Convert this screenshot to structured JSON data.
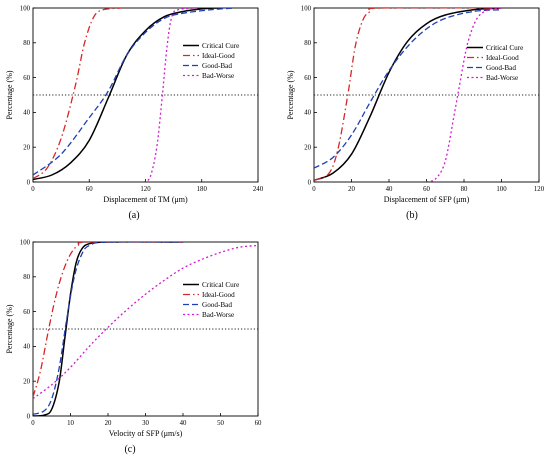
{
  "panels": [
    {
      "type": "line",
      "panel_label": "(a)",
      "xlabel": "Displacement of TM (μm)",
      "ylabel": "Percentage (%)",
      "xlim": [
        0,
        240
      ],
      "ylim": [
        0,
        100
      ],
      "xticks": [
        "0",
        "60",
        "120",
        "180",
        "240"
      ],
      "xtick_values": [
        0,
        60,
        120,
        180,
        240
      ],
      "yticks": [
        "0",
        "20",
        "40",
        "60",
        "80",
        "100"
      ],
      "ytick_values": [
        0,
        20,
        40,
        60,
        80,
        100
      ],
      "reference_line": {
        "y": 50
      },
      "legend_position": "upper-right",
      "series": [
        {
          "name": "Critical Cure",
          "color": "#000000",
          "dash": "solid",
          "points": [
            [
              0,
              1.5
            ],
            [
              20,
              4
            ],
            [
              40,
              11
            ],
            [
              60,
              24
            ],
            [
              80,
              48
            ],
            [
              100,
              73
            ],
            [
              120,
              87
            ],
            [
              140,
              95
            ],
            [
              160,
              98
            ],
            [
              180,
              99.5
            ],
            [
              200,
              100
            ]
          ]
        },
        {
          "name": "Ideal-Good",
          "color": "#d62728",
          "dash": "dashdot",
          "points": [
            [
              0,
              2
            ],
            [
              15,
              8
            ],
            [
              30,
              25
            ],
            [
              45,
              55
            ],
            [
              55,
              80
            ],
            [
              65,
              95
            ],
            [
              75,
              99
            ],
            [
              95,
              100
            ]
          ]
        },
        {
          "name": "Good-Bad",
          "color": "#1f3fb4",
          "dash": "dash",
          "points": [
            [
              0,
              4
            ],
            [
              30,
              16
            ],
            [
              60,
              37
            ],
            [
              80,
              52
            ],
            [
              100,
              73
            ],
            [
              120,
              86
            ],
            [
              140,
              94
            ],
            [
              160,
              97
            ],
            [
              190,
              99
            ],
            [
              215,
              100
            ]
          ]
        },
        {
          "name": "Bad-Worse",
          "color": "#d21bd2",
          "dash": "dot",
          "points": [
            [
              118,
              0
            ],
            [
              125,
              3
            ],
            [
              132,
              20
            ],
            [
              138,
              50
            ],
            [
              143,
              78
            ],
            [
              148,
              95
            ],
            [
              155,
              99
            ],
            [
              175,
              100
            ]
          ]
        }
      ]
    },
    {
      "type": "line",
      "panel_label": "(b)",
      "xlabel": "Displacement of SFP (μm)",
      "ylabel": "Percentage (%)",
      "xlim": [
        0,
        120
      ],
      "ylim": [
        0,
        100
      ],
      "xticks": [
        "0",
        "20",
        "40",
        "60",
        "80",
        "100",
        "120"
      ],
      "xtick_values": [
        0,
        20,
        40,
        60,
        80,
        100,
        120
      ],
      "yticks": [
        "0",
        "20",
        "40",
        "60",
        "80",
        "100"
      ],
      "ytick_values": [
        0,
        20,
        40,
        60,
        80,
        100
      ],
      "reference_line": {
        "y": 50
      },
      "legend_position": "upper-right",
      "series": [
        {
          "name": "Critical Cure",
          "color": "#000000",
          "dash": "solid",
          "points": [
            [
              0,
              1
            ],
            [
              10,
              5
            ],
            [
              20,
              16
            ],
            [
              30,
              38
            ],
            [
              40,
              63
            ],
            [
              50,
              81
            ],
            [
              60,
              91
            ],
            [
              70,
              96
            ],
            [
              85,
              99
            ],
            [
              100,
              100
            ]
          ]
        },
        {
          "name": "Ideal-Good",
          "color": "#d62728",
          "dash": "dashdot",
          "points": [
            [
              0,
              1
            ],
            [
              8,
              5
            ],
            [
              13,
              20
            ],
            [
              18,
              50
            ],
            [
              22,
              78
            ],
            [
              26,
              93
            ],
            [
              30,
              98
            ],
            [
              36,
              100
            ],
            [
              100,
              100
            ]
          ]
        },
        {
          "name": "Good-Bad",
          "color": "#1f3fb4",
          "dash": "dash",
          "points": [
            [
              0,
              8
            ],
            [
              10,
              14
            ],
            [
              20,
              27
            ],
            [
              30,
              46
            ],
            [
              40,
              64
            ],
            [
              50,
              78
            ],
            [
              60,
              88
            ],
            [
              70,
              94
            ],
            [
              85,
              98
            ],
            [
              100,
              99
            ]
          ]
        },
        {
          "name": "Bad-Worse",
          "color": "#d21bd2",
          "dash": "dot",
          "points": [
            [
              60,
              0
            ],
            [
              65,
              2
            ],
            [
              70,
              12
            ],
            [
              75,
              40
            ],
            [
              78,
              58
            ],
            [
              82,
              80
            ],
            [
              87,
              94
            ],
            [
              93,
              99
            ],
            [
              100,
              100
            ]
          ]
        }
      ]
    },
    {
      "type": "line",
      "panel_label": "(c)",
      "xlabel": "Velocity of SFP (μm/s)",
      "ylabel": "Percentage (%)",
      "xlim": [
        0,
        60
      ],
      "ylim": [
        0,
        100
      ],
      "xticks": [
        "0",
        "10",
        "20",
        "30",
        "40",
        "50",
        "60"
      ],
      "xtick_values": [
        0,
        10,
        20,
        30,
        40,
        50,
        60
      ],
      "yticks": [
        "0",
        "20",
        "40",
        "60",
        "80",
        "100"
      ],
      "ytick_values": [
        0,
        20,
        40,
        60,
        80,
        100
      ],
      "reference_line": {
        "y": 50
      },
      "legend_position": "upper-right",
      "series": [
        {
          "name": "Critical Cure",
          "color": "#000000",
          "dash": "solid",
          "points": [
            [
              0,
              0
            ],
            [
              3,
              0.5
            ],
            [
              5,
              4
            ],
            [
              7,
              20
            ],
            [
              8.5,
              45
            ],
            [
              10,
              70
            ],
            [
              11.5,
              88
            ],
            [
              13,
              96
            ],
            [
              15,
              99
            ],
            [
              20,
              100
            ],
            [
              40,
              100
            ]
          ]
        },
        {
          "name": "Ideal-Good",
          "color": "#d62728",
          "dash": "dashdot",
          "points": [
            [
              0,
              11
            ],
            [
              2,
              26
            ],
            [
              4,
              48
            ],
            [
              6,
              68
            ],
            [
              8,
              83
            ],
            [
              10,
              93
            ],
            [
              12,
              98
            ],
            [
              15,
              100
            ],
            [
              40,
              100
            ]
          ]
        },
        {
          "name": "Good-Bad",
          "color": "#1f3fb4",
          "dash": "dash",
          "points": [
            [
              0,
              1
            ],
            [
              3,
              3
            ],
            [
              5,
              10
            ],
            [
              7,
              28
            ],
            [
              9,
              56
            ],
            [
              11,
              80
            ],
            [
              13,
              93
            ],
            [
              15,
              98
            ],
            [
              20,
              100
            ],
            [
              40,
              100
            ]
          ]
        },
        {
          "name": "Bad-Worse",
          "color": "#d21bd2",
          "dash": "dot",
          "points": [
            [
              0,
              10
            ],
            [
              5,
              18
            ],
            [
              10,
              28
            ],
            [
              15,
              40
            ],
            [
              20,
              51
            ],
            [
              25,
              61
            ],
            [
              30,
              70
            ],
            [
              35,
              78
            ],
            [
              40,
              85
            ],
            [
              45,
              90
            ],
            [
              50,
              94
            ],
            [
              55,
              97
            ],
            [
              60,
              98
            ]
          ]
        }
      ]
    }
  ]
}
